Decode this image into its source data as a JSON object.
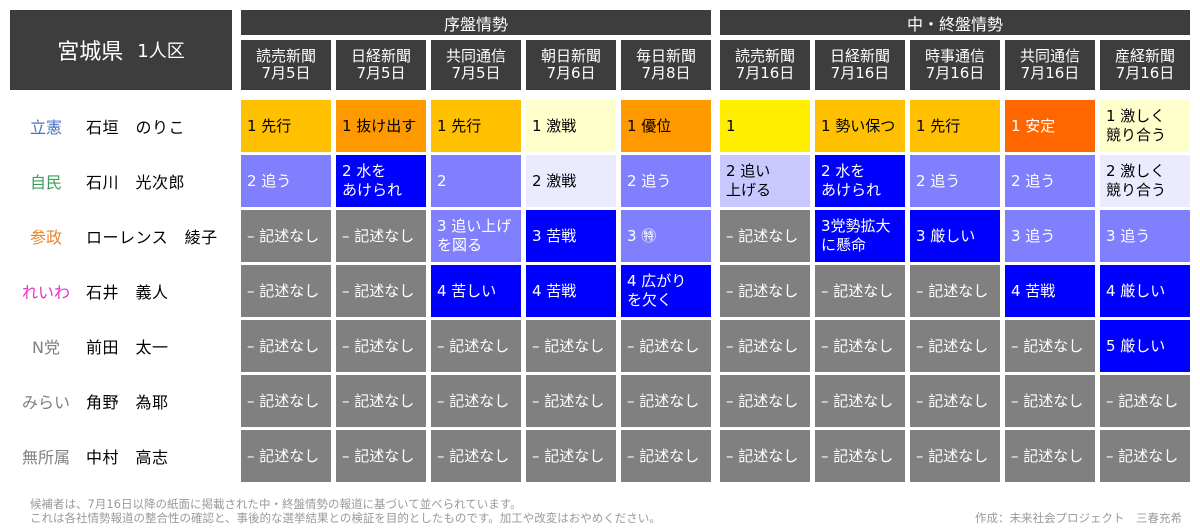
{
  "title": {
    "prefecture": "宮城県",
    "seats": "1人区"
  },
  "groups": [
    {
      "label": "序盤情勢"
    },
    {
      "label": "中・終盤情勢"
    }
  ],
  "columns": [
    {
      "paper": "読売新聞",
      "date": "7月5日"
    },
    {
      "paper": "日経新聞",
      "date": "7月5日"
    },
    {
      "paper": "共同通信",
      "date": "7月5日"
    },
    {
      "paper": "朝日新聞",
      "date": "7月6日"
    },
    {
      "paper": "毎日新聞",
      "date": "7月8日"
    },
    {
      "paper": "読売新聞",
      "date": "7月16日"
    },
    {
      "paper": "日経新聞",
      "date": "7月16日"
    },
    {
      "paper": "時事通信",
      "date": "7月16日"
    },
    {
      "paper": "共同通信",
      "date": "7月16日"
    },
    {
      "paper": "産経新聞",
      "date": "7月16日"
    }
  ],
  "palette": {
    "yellow": "#ffee00",
    "gold": "#ffc000",
    "orange": "#ff9900",
    "red_orange": "#ff6600",
    "cream": "#ffffcc",
    "lavender": "#ebebff",
    "light_purple": "#c8c8ff",
    "periwinkle": "#8080ff",
    "blue": "#0000ff",
    "gray": "#808080"
  },
  "rows": [
    {
      "party": "立憲",
      "party_color": "#4472c4",
      "name": "石垣　のりこ",
      "cells": [
        {
          "text": "1 先行",
          "bg": "gold",
          "fg": "#000000"
        },
        {
          "text": "1 抜け出す",
          "bg": "orange",
          "fg": "#000000"
        },
        {
          "text": "1 先行",
          "bg": "gold",
          "fg": "#000000"
        },
        {
          "text": "1 激戦",
          "bg": "cream",
          "fg": "#000000"
        },
        {
          "text": "1 優位",
          "bg": "orange",
          "fg": "#000000"
        },
        {
          "text": "1",
          "bg": "yellow",
          "fg": "#000000"
        },
        {
          "text": "1 勢い保つ",
          "bg": "gold",
          "fg": "#000000"
        },
        {
          "text": "1 先行",
          "bg": "gold",
          "fg": "#000000"
        },
        {
          "text": "1 安定",
          "bg": "red_orange",
          "fg": "#ffffff"
        },
        {
          "text": "1 激しく\n  競り合う",
          "bg": "cream",
          "fg": "#000000"
        }
      ]
    },
    {
      "party": "自民",
      "party_color": "#3a9d5d",
      "name": "石川　光次郎",
      "cells": [
        {
          "text": "2 追う",
          "bg": "periwinkle",
          "fg": "#ffffff"
        },
        {
          "text": "2 水を\n  あけられ",
          "bg": "blue",
          "fg": "#ffffff"
        },
        {
          "text": "2",
          "bg": "periwinkle",
          "fg": "#ffffff"
        },
        {
          "text": "2 激戦",
          "bg": "lavender",
          "fg": "#000000"
        },
        {
          "text": "2 追う",
          "bg": "periwinkle",
          "fg": "#ffffff"
        },
        {
          "text": "2 追い\n  上げる",
          "bg": "light_purple",
          "fg": "#000000"
        },
        {
          "text": "2 水を\n  あけられ",
          "bg": "blue",
          "fg": "#ffffff"
        },
        {
          "text": "2 追う",
          "bg": "periwinkle",
          "fg": "#ffffff"
        },
        {
          "text": "2 追う",
          "bg": "periwinkle",
          "fg": "#ffffff"
        },
        {
          "text": "2 激しく\n  競り合う",
          "bg": "lavender",
          "fg": "#000000"
        }
      ]
    },
    {
      "party": "参政",
      "party_color": "#e8872a",
      "name": "ローレンス　綾子",
      "cells": [
        {
          "text": "– 記述なし",
          "bg": "gray",
          "fg": "#ffffff"
        },
        {
          "text": "– 記述なし",
          "bg": "gray",
          "fg": "#ffffff"
        },
        {
          "text": "3 追い上げ\n  を図る",
          "bg": "periwinkle",
          "fg": "#ffffff"
        },
        {
          "text": "3 苦戦",
          "bg": "blue",
          "fg": "#ffffff"
        },
        {
          "text": "3 ㊕",
          "bg": "periwinkle",
          "fg": "#ffffff"
        },
        {
          "text": "– 記述なし",
          "bg": "gray",
          "fg": "#ffffff"
        },
        {
          "text": "3党勢拡大\nに懸命",
          "bg": "blue",
          "fg": "#ffffff"
        },
        {
          "text": "3 厳しい",
          "bg": "blue",
          "fg": "#ffffff"
        },
        {
          "text": "3 追う",
          "bg": "periwinkle",
          "fg": "#ffffff"
        },
        {
          "text": "3 追う",
          "bg": "periwinkle",
          "fg": "#ffffff"
        }
      ]
    },
    {
      "party": "れいわ",
      "party_color": "#e830c8",
      "name": "石井　義人",
      "cells": [
        {
          "text": "– 記述なし",
          "bg": "gray",
          "fg": "#ffffff"
        },
        {
          "text": "– 記述なし",
          "bg": "gray",
          "fg": "#ffffff"
        },
        {
          "text": "4 苦しい",
          "bg": "blue",
          "fg": "#ffffff"
        },
        {
          "text": "4 苦戦",
          "bg": "blue",
          "fg": "#ffffff"
        },
        {
          "text": "4 広がり\n  を欠く",
          "bg": "blue",
          "fg": "#ffffff"
        },
        {
          "text": "– 記述なし",
          "bg": "gray",
          "fg": "#ffffff"
        },
        {
          "text": "– 記述なし",
          "bg": "gray",
          "fg": "#ffffff"
        },
        {
          "text": "– 記述なし",
          "bg": "gray",
          "fg": "#ffffff"
        },
        {
          "text": "4 苦戦",
          "bg": "blue",
          "fg": "#ffffff"
        },
        {
          "text": "4 厳しい",
          "bg": "blue",
          "fg": "#ffffff"
        }
      ]
    },
    {
      "party": "N党",
      "party_color": "#808080",
      "name": "前田　太一",
      "cells": [
        {
          "text": "– 記述なし",
          "bg": "gray",
          "fg": "#ffffff"
        },
        {
          "text": "– 記述なし",
          "bg": "gray",
          "fg": "#ffffff"
        },
        {
          "text": "– 記述なし",
          "bg": "gray",
          "fg": "#ffffff"
        },
        {
          "text": "– 記述なし",
          "bg": "gray",
          "fg": "#ffffff"
        },
        {
          "text": "– 記述なし",
          "bg": "gray",
          "fg": "#ffffff"
        },
        {
          "text": "– 記述なし",
          "bg": "gray",
          "fg": "#ffffff"
        },
        {
          "text": "– 記述なし",
          "bg": "gray",
          "fg": "#ffffff"
        },
        {
          "text": "– 記述なし",
          "bg": "gray",
          "fg": "#ffffff"
        },
        {
          "text": "– 記述なし",
          "bg": "gray",
          "fg": "#ffffff"
        },
        {
          "text": "5 厳しい",
          "bg": "blue",
          "fg": "#ffffff"
        }
      ]
    },
    {
      "party": "みらい",
      "party_color": "#808080",
      "name": "角野　為耶",
      "cells": [
        {
          "text": "– 記述なし",
          "bg": "gray",
          "fg": "#ffffff"
        },
        {
          "text": "– 記述なし",
          "bg": "gray",
          "fg": "#ffffff"
        },
        {
          "text": "– 記述なし",
          "bg": "gray",
          "fg": "#ffffff"
        },
        {
          "text": "– 記述なし",
          "bg": "gray",
          "fg": "#ffffff"
        },
        {
          "text": "– 記述なし",
          "bg": "gray",
          "fg": "#ffffff"
        },
        {
          "text": "– 記述なし",
          "bg": "gray",
          "fg": "#ffffff"
        },
        {
          "text": "– 記述なし",
          "bg": "gray",
          "fg": "#ffffff"
        },
        {
          "text": "– 記述なし",
          "bg": "gray",
          "fg": "#ffffff"
        },
        {
          "text": "– 記述なし",
          "bg": "gray",
          "fg": "#ffffff"
        },
        {
          "text": "– 記述なし",
          "bg": "gray",
          "fg": "#ffffff"
        }
      ]
    },
    {
      "party": "無所属",
      "party_color": "#808080",
      "name": "中村　高志",
      "cells": [
        {
          "text": "– 記述なし",
          "bg": "gray",
          "fg": "#ffffff"
        },
        {
          "text": "– 記述なし",
          "bg": "gray",
          "fg": "#ffffff"
        },
        {
          "text": "– 記述なし",
          "bg": "gray",
          "fg": "#ffffff"
        },
        {
          "text": "– 記述なし",
          "bg": "gray",
          "fg": "#ffffff"
        },
        {
          "text": "– 記述なし",
          "bg": "gray",
          "fg": "#ffffff"
        },
        {
          "text": "– 記述なし",
          "bg": "gray",
          "fg": "#ffffff"
        },
        {
          "text": "– 記述なし",
          "bg": "gray",
          "fg": "#ffffff"
        },
        {
          "text": "– 記述なし",
          "bg": "gray",
          "fg": "#ffffff"
        },
        {
          "text": "– 記述なし",
          "bg": "gray",
          "fg": "#ffffff"
        },
        {
          "text": "– 記述なし",
          "bg": "gray",
          "fg": "#ffffff"
        }
      ]
    }
  ],
  "footer": {
    "line1": "候補者は、7月16日以降の紙面に掲載された中・終盤情勢の報道に基づいて並べられています。",
    "line2": "これは各社情勢報道の整合性の確認と、事後的な選挙結果との検証を目的としたものです。加工や改変はおやめください。",
    "credit": "作成：未来社会プロジェクト　三春充希"
  }
}
